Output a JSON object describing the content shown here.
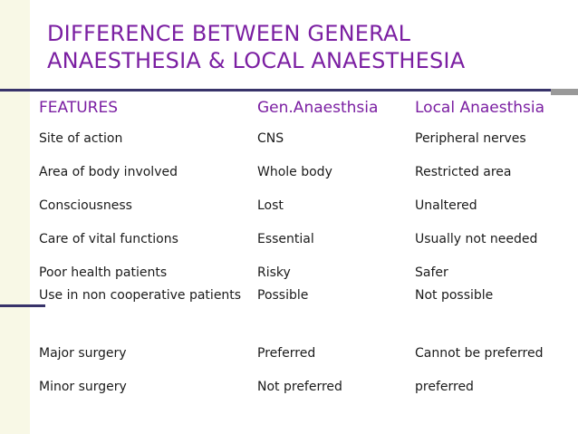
{
  "title": {
    "line1": "DIFFERENCE BETWEEN GENERAL",
    "line2": "ANAESTHESIA & LOCAL ANAESTHESIA"
  },
  "table": {
    "headers": [
      "FEATURES",
      "Gen.Anaesthsia",
      "Local Anaesthsia"
    ],
    "rows": [
      [
        "Site of action",
        "CNS",
        "Peripheral nerves"
      ],
      [
        "Area of body involved",
        "Whole body",
        "Restricted area"
      ],
      [
        "Consciousness",
        "Lost",
        "Unaltered"
      ],
      [
        "Care of vital functions",
        "Essential",
        "Usually not needed"
      ],
      [
        "Poor health patients",
        "Risky",
        "Safer"
      ],
      [
        "Use in non cooperative patients",
        "Possible",
        "Not possible"
      ],
      [
        "Major surgery",
        "Preferred",
        "Cannot be preferred"
      ],
      [
        "Minor surgery",
        "Not preferred",
        "preferred"
      ]
    ]
  },
  "colors": {
    "title": "#7b1fa2",
    "rule": "#38336a",
    "background_strip": "#f8f8e6"
  }
}
